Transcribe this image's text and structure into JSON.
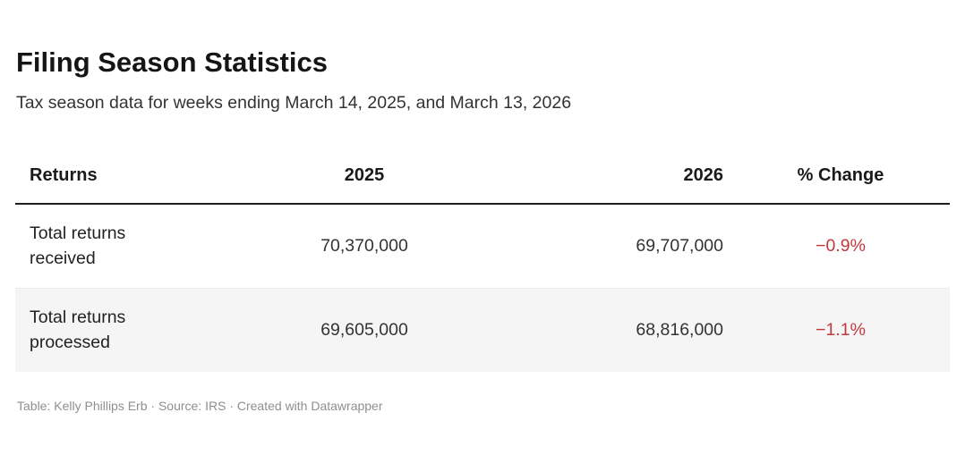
{
  "header": {
    "title": "Filing Season Statistics",
    "subtitle": "Tax season data for weeks ending March 14, 2025, and March 13, 2026"
  },
  "table": {
    "columns": [
      {
        "label": "Returns",
        "align": "left"
      },
      {
        "label": "2025",
        "align": "center"
      },
      {
        "label": "2026",
        "align": "right"
      },
      {
        "label": "% Change",
        "align": "center"
      }
    ],
    "rows": [
      {
        "label": "Total returns received",
        "v2025": "70,370,000",
        "v2026": "69,707,000",
        "change": "−0.9%",
        "striped": false
      },
      {
        "label": "Total returns processed",
        "v2025": "69,605,000",
        "v2026": "68,816,000",
        "change": "−1.1%",
        "striped": true
      }
    ]
  },
  "footer": {
    "credit": "Table: Kelly Phillips Erb · Source: IRS · Created with Datawrapper"
  },
  "colors": {
    "negative": "#c0393c",
    "stripe": "#f5f5f5",
    "rule": "#1f1f1f",
    "footer_text": "#8f8f8f"
  },
  "chart_data": {
    "type": "table",
    "title": "Filing Season Statistics",
    "subtitle": "Tax season data for weeks ending March 14, 2025, and March 13, 2026",
    "columns": [
      "Returns",
      "2025",
      "2026",
      "% Change"
    ],
    "rows": [
      [
        "Total returns received",
        70370000,
        69707000,
        -0.9
      ],
      [
        "Total returns processed",
        69605000,
        68816000,
        -1.1
      ]
    ],
    "notes": "Table: Kelly Phillips Erb · Source: IRS · Created with Datawrapper"
  }
}
